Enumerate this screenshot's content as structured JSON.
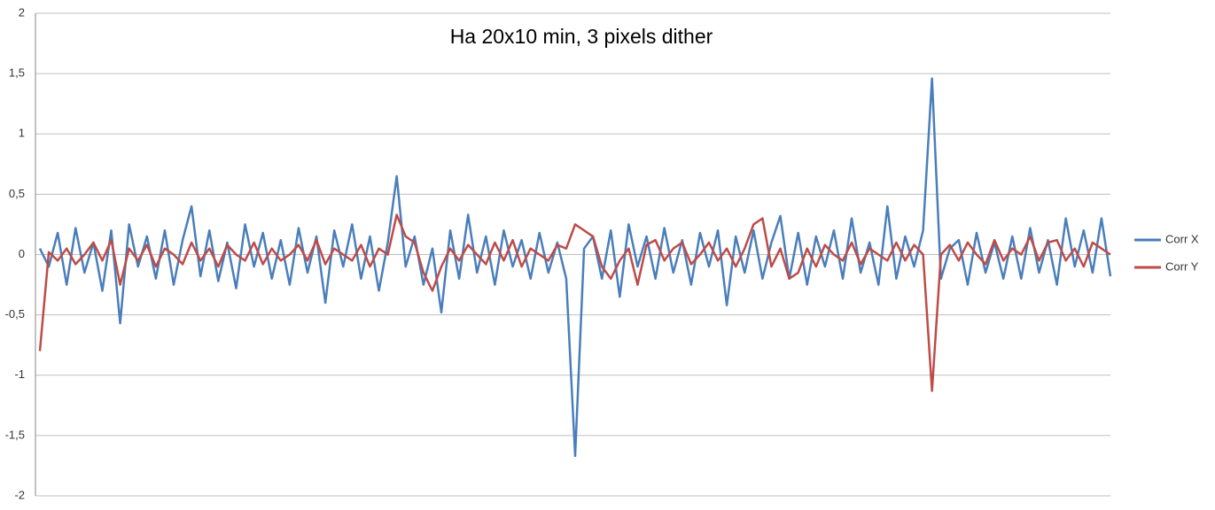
{
  "chart_data": {
    "type": "line",
    "title": "Ha 20x10 min, 3 pixels dither",
    "ylim": [
      -2,
      2
    ],
    "yticks": [
      -2,
      {
        "value": -1.5,
        "label": "-1,5"
      },
      -1,
      {
        "value": -0.5,
        "label": "-0,5"
      },
      0,
      {
        "value": 0.5,
        "label": "0,5"
      },
      1,
      {
        "value": 1.5,
        "label": "1,5"
      },
      2
    ],
    "grid": true,
    "legend": "right",
    "series": [
      {
        "name": "Corr X",
        "color": "#4a7ebb",
        "values": [
          0.05,
          -0.1,
          0.18,
          -0.25,
          0.22,
          -0.15,
          0.1,
          -0.3,
          0.2,
          -0.57,
          0.25,
          -0.1,
          0.15,
          -0.2,
          0.2,
          -0.25,
          0.12,
          0.4,
          -0.18,
          0.2,
          -0.22,
          0.1,
          -0.28,
          0.25,
          -0.1,
          0.18,
          -0.2,
          0.12,
          -0.25,
          0.22,
          -0.15,
          0.15,
          -0.4,
          0.2,
          -0.1,
          0.25,
          -0.2,
          0.15,
          -0.3,
          0.1,
          0.65,
          -0.1,
          0.15,
          -0.25,
          0.05,
          -0.48,
          0.2,
          -0.2,
          0.33,
          -0.15,
          0.15,
          -0.25,
          0.2,
          -0.1,
          0.12,
          -0.2,
          0.18,
          -0.15,
          0.1,
          -0.2,
          -1.67,
          0.05,
          0.15,
          -0.2,
          0.2,
          -0.35,
          0.25,
          -0.1,
          0.15,
          -0.2,
          0.22,
          -0.15,
          0.12,
          -0.25,
          0.18,
          -0.1,
          0.2,
          -0.42,
          0.15,
          -0.15,
          0.2,
          -0.2,
          0.1,
          0.32,
          -0.2,
          0.18,
          -0.25,
          0.15,
          -0.1,
          0.2,
          -0.2,
          0.3,
          -0.15,
          0.1,
          -0.25,
          0.4,
          -0.2,
          0.15,
          -0.1,
          0.2,
          1.46,
          -0.2,
          0.05,
          0.12,
          -0.25,
          0.18,
          -0.15,
          0.1,
          -0.2,
          0.15,
          -0.2,
          0.22,
          -0.15,
          0.12,
          -0.25,
          0.3,
          -0.1,
          0.2,
          -0.15,
          0.3,
          -0.18
        ]
      },
      {
        "name": "Corr Y",
        "color": "#be4b48",
        "values": [
          -0.8,
          0.02,
          -0.05,
          0.05,
          -0.08,
          0.0,
          0.1,
          -0.05,
          0.12,
          -0.25,
          0.05,
          -0.05,
          0.08,
          -0.1,
          0.05,
          0.0,
          -0.08,
          0.1,
          -0.05,
          0.05,
          -0.1,
          0.08,
          0.0,
          -0.05,
          0.1,
          -0.08,
          0.05,
          -0.05,
          0.0,
          0.08,
          -0.05,
          0.12,
          -0.08,
          0.05,
          0.0,
          -0.05,
          0.08,
          -0.1,
          0.05,
          0.0,
          0.33,
          0.15,
          0.1,
          -0.15,
          -0.3,
          -0.1,
          0.05,
          -0.05,
          0.08,
          0.0,
          -0.08,
          0.1,
          -0.05,
          0.12,
          -0.1,
          0.05,
          0.0,
          -0.05,
          0.08,
          0.05,
          0.25,
          0.2,
          0.15,
          -0.1,
          -0.2,
          -0.05,
          0.05,
          -0.25,
          0.08,
          0.12,
          -0.05,
          0.05,
          0.1,
          -0.08,
          0.0,
          0.1,
          -0.05,
          0.05,
          -0.1,
          0.05,
          0.25,
          0.3,
          -0.1,
          0.05,
          -0.2,
          -0.15,
          0.05,
          -0.1,
          0.08,
          0.0,
          -0.05,
          0.1,
          -0.08,
          0.05,
          0.0,
          -0.05,
          0.1,
          -0.05,
          0.08,
          0.0,
          -1.13,
          0.0,
          0.08,
          -0.05,
          0.1,
          0.0,
          -0.08,
          0.12,
          -0.05,
          0.05,
          0.0,
          0.15,
          -0.05,
          0.1,
          0.12,
          -0.05,
          0.05,
          -0.1,
          0.1,
          0.05,
          0.0
        ]
      }
    ]
  }
}
